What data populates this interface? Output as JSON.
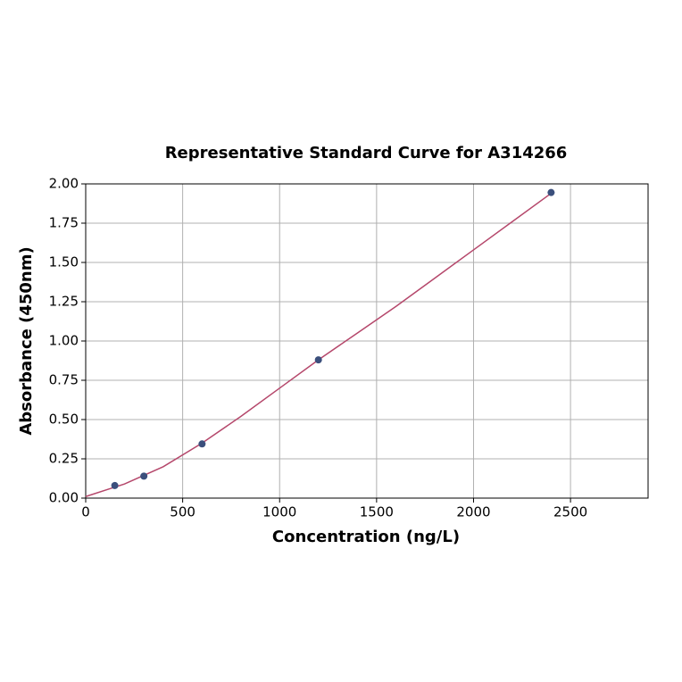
{
  "chart_data": {
    "type": "scatter",
    "title": "Representative Standard Curve for A314266",
    "x_label": "Concentration (ng/L)",
    "y_label": "Absorbance (450nm)",
    "points": {
      "color": "#3b4f7c",
      "x": [
        150,
        300,
        600,
        1200,
        2400
      ],
      "values": [
        0.08,
        0.14,
        0.345,
        0.88,
        1.945
      ]
    },
    "curve": {
      "color": "#b5476b",
      "x": [
        0,
        200,
        400,
        600,
        800,
        1000,
        1200,
        1400,
        1600,
        1800,
        2000,
        2200,
        2400
      ],
      "values": [
        0.01,
        0.09,
        0.2,
        0.35,
        0.52,
        0.7,
        0.88,
        1.05,
        1.22,
        1.4,
        1.58,
        1.76,
        1.94
      ]
    },
    "xlim": [
      0,
      2900
    ],
    "xticks": [
      0,
      500,
      1000,
      1500,
      2000,
      2500
    ],
    "ylim": [
      0,
      2
    ],
    "yticks": [
      {
        "value": 0,
        "label": "0.00"
      },
      {
        "value": 0.25,
        "label": "0.25"
      },
      {
        "value": 0.5,
        "label": "0.50"
      },
      {
        "value": 0.75,
        "label": "0.75"
      },
      {
        "value": 1,
        "label": "1.00"
      },
      {
        "value": 1.25,
        "label": "1.25"
      },
      {
        "value": 1.5,
        "label": "1.50"
      },
      {
        "value": 1.75,
        "label": "1.75"
      },
      {
        "value": 2,
        "label": "2.00"
      }
    ],
    "grid": true
  }
}
